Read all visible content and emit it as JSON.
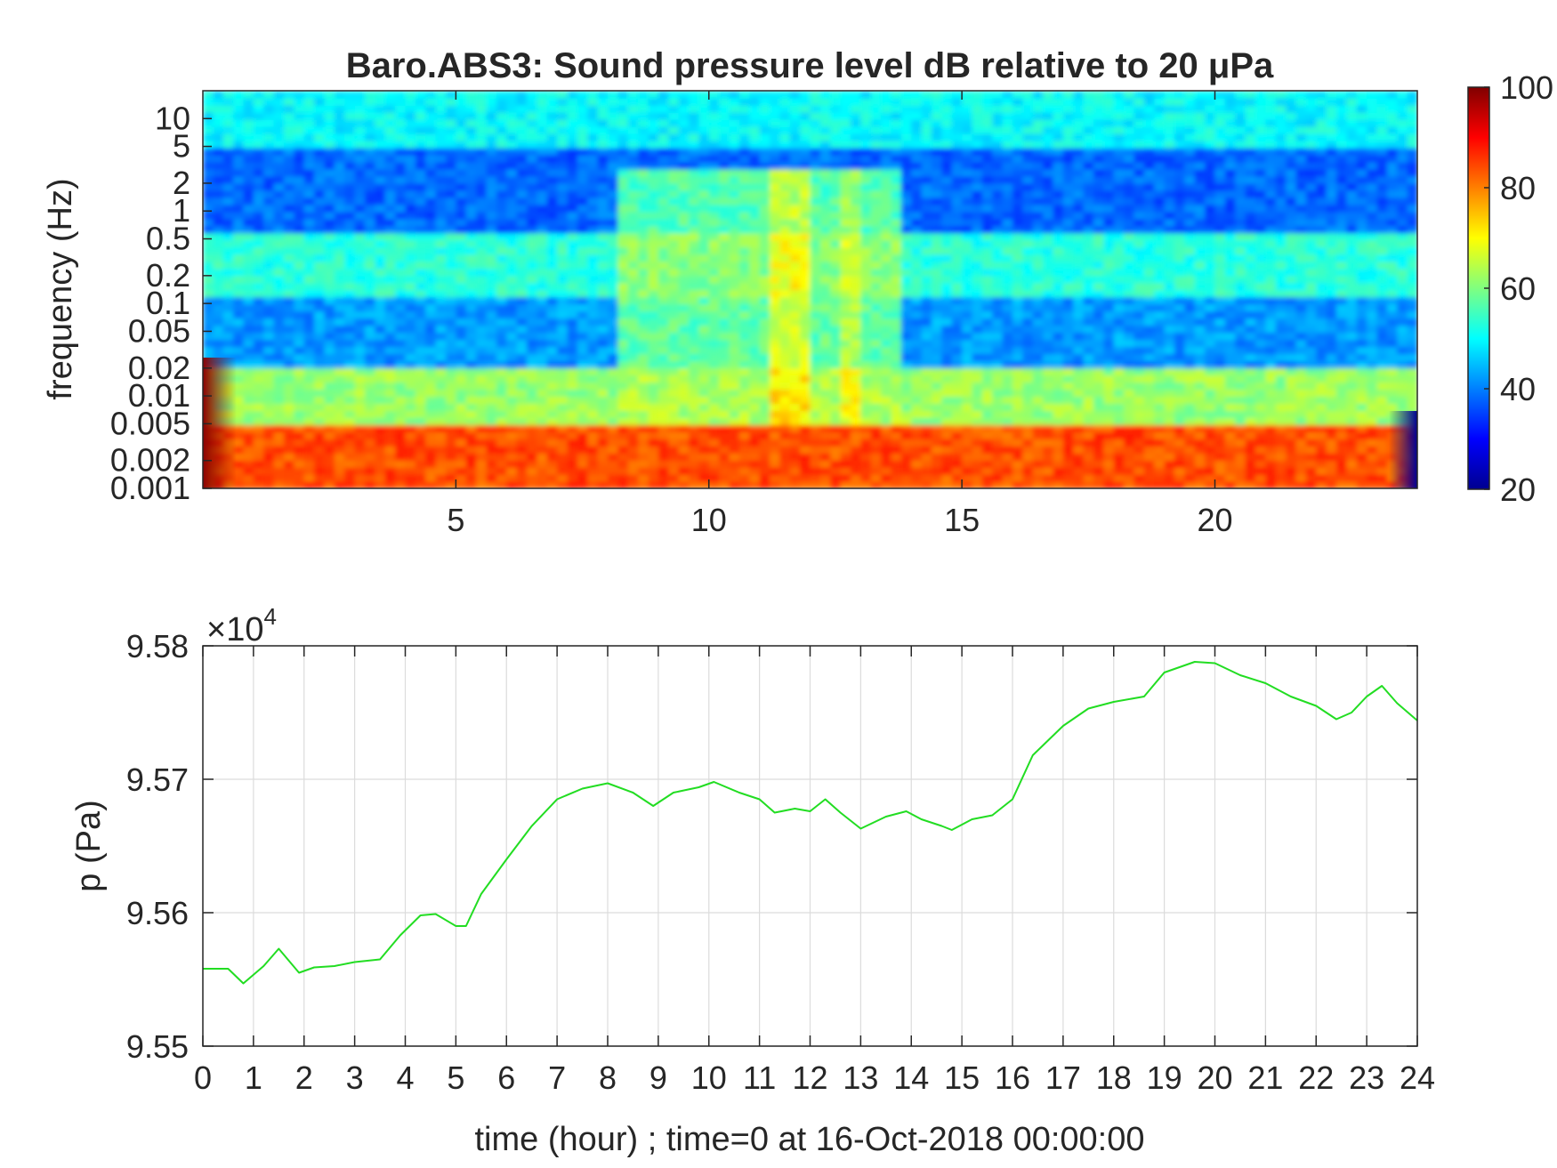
{
  "chart_data": [
    {
      "type": "heatmap",
      "title": "Baro.ABS3: Sound pressure level dB relative to 20 μPa",
      "xlabel": "",
      "ylabel": "frequency (Hz)",
      "x_unit": "hour",
      "xlim": [
        0,
        24
      ],
      "x_ticks": [
        5,
        10,
        15,
        20
      ],
      "y_scale": "log",
      "ylim": [
        0.001,
        20
      ],
      "y_ticks": [
        0.001,
        0.002,
        0.005,
        0.01,
        0.02,
        0.05,
        0.1,
        0.2,
        0.5,
        1,
        2,
        5,
        10
      ],
      "y_tick_labels": [
        "0.001",
        "0.002",
        "0.005",
        "0.01",
        "0.02",
        "0.05",
        "0.1",
        "0.2",
        "0.5",
        "1",
        "2",
        "5",
        "10"
      ],
      "colormap": "jet",
      "colorbar": {
        "range": [
          20,
          100
        ],
        "ticks": [
          20,
          40,
          60,
          80,
          100
        ],
        "position": "right"
      },
      "grid": false,
      "frequency_bands_dB": [
        {
          "freq_range": [
            5,
            20
          ],
          "level_dB": 50
        },
        {
          "freq_range": [
            0.6,
            5
          ],
          "level_dB": 38
        },
        {
          "freq_range": [
            0.12,
            0.6
          ],
          "level_dB": 53
        },
        {
          "freq_range": [
            0.02,
            0.12
          ],
          "level_dB": 42
        },
        {
          "freq_range": [
            0.005,
            0.02
          ],
          "level_dB": 62
        },
        {
          "freq_range": [
            0.001,
            0.005
          ],
          "level_dB": 84
        }
      ],
      "active_periods": [
        {
          "time": [
            8.3,
            13.8
          ],
          "level_dB": 64
        },
        {
          "time": [
            11.3,
            12.0
          ],
          "level_dB": 76
        },
        {
          "time": [
            12.6,
            13.0
          ],
          "level_dB": 72
        }
      ]
    },
    {
      "type": "line",
      "title": "",
      "xlabel": "time (hour) ; time=0 at 16-Oct-2018 00:00:00",
      "ylabel": "p (Pa)",
      "y_multiplier_label": "×10",
      "y_multiplier_exponent": "4",
      "xlim": [
        0,
        24
      ],
      "ylim": [
        95500,
        95800
      ],
      "x_ticks": [
        0,
        1,
        2,
        3,
        4,
        5,
        6,
        7,
        8,
        9,
        10,
        11,
        12,
        13,
        14,
        15,
        16,
        17,
        18,
        19,
        20,
        21,
        22,
        23,
        24
      ],
      "y_ticks": [
        95500,
        95600,
        95700,
        95800
      ],
      "y_tick_labels": [
        "9.55",
        "9.56",
        "9.57",
        "9.58"
      ],
      "grid": true,
      "color": "#22dd22",
      "x": [
        0,
        0.5,
        0.8,
        1.2,
        1.5,
        1.9,
        2.2,
        2.6,
        3.0,
        3.5,
        3.9,
        4.3,
        4.6,
        5.0,
        5.2,
        5.5,
        6.0,
        6.5,
        7.0,
        7.5,
        8.0,
        8.5,
        8.9,
        9.3,
        9.8,
        10.1,
        10.6,
        11.0,
        11.3,
        11.7,
        12.0,
        12.3,
        12.6,
        13.0,
        13.5,
        13.9,
        14.2,
        14.6,
        14.8,
        15.2,
        15.6,
        16.0,
        16.4,
        17.0,
        17.5,
        18.0,
        18.6,
        19.0,
        19.6,
        20.0,
        20.5,
        21.0,
        21.5,
        22.0,
        22.4,
        22.7,
        23.0,
        23.3,
        23.6,
        24.0
      ],
      "y": [
        95558,
        95558,
        95547,
        95560,
        95573,
        95555,
        95559,
        95560,
        95563,
        95565,
        95583,
        95598,
        95599,
        95590,
        95590,
        95614,
        95640,
        95665,
        95685,
        95693,
        95697,
        95690,
        95680,
        95690,
        95694,
        95698,
        95690,
        95685,
        95675,
        95678,
        95676,
        95685,
        95675,
        95663,
        95672,
        95676,
        95670,
        95665,
        95662,
        95670,
        95673,
        95685,
        95718,
        95740,
        95753,
        95758,
        95762,
        95780,
        95788,
        95787,
        95778,
        95772,
        95762,
        95755,
        95745,
        95750,
        95762,
        95770,
        95757,
        95744
      ]
    }
  ]
}
